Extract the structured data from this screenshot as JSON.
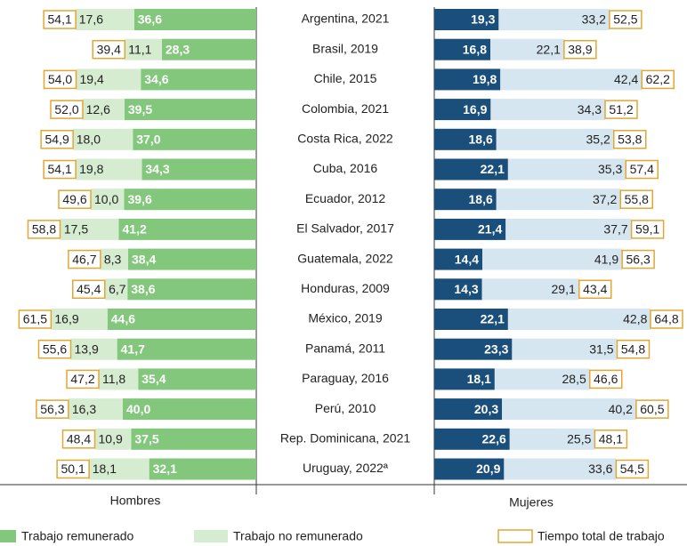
{
  "chart_data": {
    "type": "diverging_bar",
    "categories": [
      "Argentina, 2021",
      "Brasil, 2019",
      "Chile, 2015",
      "Colombia, 2021",
      "Costa Rica, 2022",
      "Cuba, 2016",
      "Ecuador, 2012",
      "El Salvador, 2017",
      "Guatemala, 2022",
      "Honduras, 2009",
      "México, 2019",
      "Panamá, 2011",
      "Paraguay, 2016",
      "Perú, 2010",
      "Rep. Dominicana, 2021",
      "Uruguay, 2022ª"
    ],
    "panels": [
      {
        "name": "Hombres",
        "series": [
          {
            "name": "Trabajo remunerado",
            "color": "#82c77b",
            "values": [
              36.6,
              28.3,
              34.6,
              39.5,
              37.0,
              34.3,
              39.6,
              41.2,
              38.4,
              38.6,
              44.6,
              41.7,
              35.4,
              40.0,
              37.5,
              32.1
            ],
            "value_labels": [
              "36,6",
              "28,3",
              "34,6",
              "39,5",
              "37,0",
              "34,3",
              "39,6",
              "41,2",
              "38,4",
              "38,6",
              "44,6",
              "41,7",
              "35,4",
              "40,0",
              "37,5",
              "32,1"
            ]
          },
          {
            "name": "Trabajo no remunerado",
            "color": "#d5ecd0",
            "values": [
              17.6,
              11.1,
              19.4,
              12.6,
              18.0,
              19.8,
              10.0,
              17.5,
              8.3,
              6.7,
              16.9,
              13.9,
              11.8,
              16.3,
              10.9,
              18.1
            ],
            "value_labels": [
              "17,6",
              "11,1",
              "19,4",
              "12,6",
              "18,0",
              "19,8",
              "10,0",
              "17,5",
              "8,3",
              "6,7",
              "16,9",
              "13,9",
              "11,8",
              "16,3",
              "10,9",
              "18,1"
            ]
          },
          {
            "name": "Tiempo total de trabajo",
            "color": "#e3a632",
            "values": [
              54.1,
              39.4,
              54.0,
              52.0,
              54.9,
              54.1,
              49.6,
              58.8,
              46.7,
              45.4,
              61.5,
              55.6,
              47.2,
              56.3,
              48.4,
              50.1
            ],
            "value_labels": [
              "54,1",
              "39,4",
              "54,0",
              "52,0",
              "54,9",
              "54,1",
              "49,6",
              "58,8",
              "46,7",
              "45,4",
              "61,5",
              "55,6",
              "47,2",
              "56,3",
              "48,4",
              "50,1"
            ]
          }
        ]
      },
      {
        "name": "Mujeres",
        "series": [
          {
            "name": "Trabajo remunerado",
            "color": "#1b4f7b",
            "values": [
              19.3,
              16.8,
              19.8,
              16.9,
              18.6,
              22.1,
              18.6,
              21.4,
              14.4,
              14.3,
              22.1,
              23.3,
              18.1,
              20.3,
              22.6,
              20.9
            ],
            "value_labels": [
              "19,3",
              "16,8",
              "19,8",
              "16,9",
              "18,6",
              "22,1",
              "18,6",
              "21,4",
              "14,4",
              "14,3",
              "22,1",
              "23,3",
              "18,1",
              "20,3",
              "22,6",
              "20,9"
            ]
          },
          {
            "name": "Trabajo no remunerado",
            "color": "#d6e6f0",
            "values": [
              33.2,
              22.1,
              42.4,
              34.3,
              35.2,
              35.3,
              37.2,
              37.7,
              41.9,
              29.1,
              42.8,
              31.5,
              28.5,
              40.2,
              25.5,
              33.6
            ],
            "value_labels": [
              "33,2",
              "22,1",
              "42,4",
              "34,3",
              "35,2",
              "35,3",
              "37,2",
              "37,7",
              "41,9",
              "29,1",
              "42,8",
              "31,5",
              "28,5",
              "40,2",
              "25,5",
              "33,6"
            ]
          },
          {
            "name": "Tiempo total de trabajo",
            "color": "#e3a632",
            "values": [
              52.5,
              38.9,
              62.2,
              51.2,
              53.8,
              57.4,
              55.8,
              59.1,
              56.3,
              43.4,
              64.8,
              54.8,
              46.6,
              60.5,
              48.1,
              54.5
            ],
            "value_labels": [
              "52,5",
              "38,9",
              "62,2",
              "51,2",
              "53,8",
              "57,4",
              "55,8",
              "59,1",
              "56,3",
              "43,4",
              "64,8",
              "54,8",
              "46,6",
              "60,5",
              "48,1",
              "54,5"
            ]
          }
        ]
      }
    ]
  }
}
